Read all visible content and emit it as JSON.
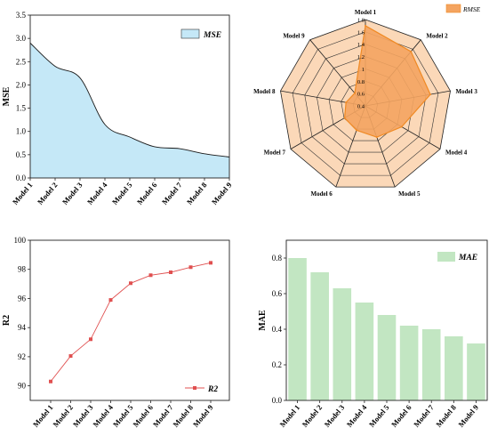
{
  "chart_data": [
    {
      "type": "area",
      "categories": [
        "Model 1",
        "Model 2",
        "Model 3",
        "Model 4",
        "Model 5",
        "Model 6",
        "Model 7",
        "Model 8",
        "Model 9"
      ],
      "series": [
        {
          "name": "MSE",
          "values": [
            2.9,
            2.4,
            2.15,
            1.15,
            0.88,
            0.67,
            0.63,
            0.52,
            0.45
          ]
        }
      ],
      "ylabel": "MSE",
      "xlabel": "",
      "ylim": [
        0,
        3.5
      ],
      "yticks": [
        "0.0",
        "0.5",
        "1.0",
        "1.5",
        "2.0",
        "2.5",
        "3.0",
        "3.5"
      ],
      "fill_color": "#c5e8f7",
      "line_color": "#1a1a1a",
      "legend": "top-right"
    },
    {
      "type": "radar",
      "categories": [
        "Model 1",
        "Model 2",
        "Model 3",
        "Model 4",
        "Model 5",
        "Model 6",
        "Model 7",
        "Model 8",
        "Model 9"
      ],
      "series": [
        {
          "name": "RMSE",
          "values": [
            1.7,
            1.55,
            1.47,
            1.08,
            0.94,
            0.82,
            0.79,
            0.72,
            0.67
          ]
        }
      ],
      "rlim": [
        0.4,
        1.8
      ],
      "rticks": [
        "0.4",
        "0.6",
        "0.8",
        "1",
        "1.2",
        "1.4",
        "1.6",
        "1.8"
      ],
      "fill_color": "#f4a460",
      "background_color": "#fbd8b8",
      "line_color": "#f08a24",
      "legend": "top-right"
    },
    {
      "type": "line",
      "categories": [
        "Model 1",
        "Model 2",
        "Model 3",
        "Model 4",
        "Model 5",
        "Model 6",
        "Model 7",
        "Model 8",
        "Model 9"
      ],
      "series": [
        {
          "name": "R2",
          "values": [
            90.3,
            92.05,
            93.2,
            95.9,
            97.05,
            97.6,
            97.8,
            98.15,
            98.45
          ]
        }
      ],
      "ylabel": "R2",
      "xlabel": "",
      "ylim": [
        89,
        100
      ],
      "yticks": [
        "90",
        "92",
        "94",
        "96",
        "98",
        "100"
      ],
      "line_color": "#e05050",
      "legend": "bottom-right"
    },
    {
      "type": "bar",
      "categories": [
        "Model 1",
        "Model 2",
        "Model 3",
        "Model 4",
        "Model 5",
        "Model 6",
        "Model 7",
        "Model 8",
        "Model 9"
      ],
      "series": [
        {
          "name": "MAE",
          "values": [
            0.8,
            0.72,
            0.63,
            0.55,
            0.48,
            0.42,
            0.4,
            0.36,
            0.32
          ]
        }
      ],
      "ylabel": "MAE",
      "xlabel": "",
      "ylim": [
        0,
        0.9
      ],
      "yticks": [
        "0.0",
        "0.2",
        "0.4",
        "0.6",
        "0.8"
      ],
      "bar_color": "#c2e6c2",
      "legend": "top-right"
    }
  ]
}
